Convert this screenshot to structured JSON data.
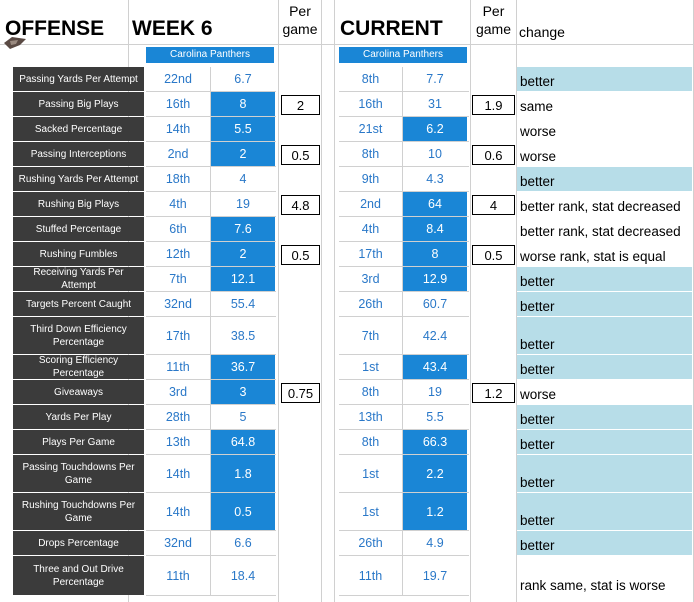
{
  "headers": {
    "offense": "OFFENSE",
    "week": "WEEK 6",
    "per_game_left": [
      "Per",
      "game"
    ],
    "current": "CURRENT",
    "per_game_right": [
      "Per",
      "game"
    ],
    "change": "change"
  },
  "team_left": "Carolina Panthers",
  "team_right": "Carolina Panthers",
  "colors": {
    "highlight": "#1a86d6",
    "label_bg": "#3b3b3b",
    "change_bg": "#b7dde8",
    "value_text": "#2a78c8"
  },
  "rows": [
    {
      "label": "Passing Yards Per Attempt",
      "w_rank": "22nd",
      "w_val": "6.7",
      "w_hi": false,
      "pg_left": "",
      "c_rank": "8th",
      "c_val": "7.7",
      "c_hi": false,
      "pg_right": "",
      "change": "better",
      "change_blue": true
    },
    {
      "label": "Passing Big Plays",
      "w_rank": "16th",
      "w_val": "8",
      "w_hi": true,
      "pg_left": "2",
      "c_rank": "16th",
      "c_val": "31",
      "c_hi": false,
      "pg_right": "1.9",
      "change": "same",
      "change_blue": false
    },
    {
      "label": "Sacked Percentage",
      "w_rank": "14th",
      "w_val": "5.5",
      "w_hi": true,
      "pg_left": "",
      "c_rank": "21st",
      "c_val": "6.2",
      "c_hi": true,
      "pg_right": "",
      "change": "worse",
      "change_blue": false
    },
    {
      "label": "Passing Interceptions",
      "w_rank": "2nd",
      "w_val": "2",
      "w_hi": true,
      "pg_left": "0.5",
      "c_rank": "8th",
      "c_val": "10",
      "c_hi": false,
      "pg_right": "0.6",
      "change": "worse",
      "change_blue": false
    },
    {
      "label": "Rushing Yards Per Attempt",
      "w_rank": "18th",
      "w_val": "4",
      "w_hi": false,
      "pg_left": "",
      "c_rank": "9th",
      "c_val": "4.3",
      "c_hi": false,
      "pg_right": "",
      "change": "better",
      "change_blue": true
    },
    {
      "label": "Rushing Big Plays",
      "w_rank": "4th",
      "w_val": "19",
      "w_hi": false,
      "pg_left": "4.8",
      "c_rank": "2nd",
      "c_val": "64",
      "c_hi": true,
      "pg_right": "4",
      "change": "better rank, stat decreased",
      "change_blue": false
    },
    {
      "label": "Stuffed Percentage",
      "w_rank": "6th",
      "w_val": "7.6",
      "w_hi": true,
      "pg_left": "",
      "c_rank": "4th",
      "c_val": "8.4",
      "c_hi": true,
      "pg_right": "",
      "change": "better rank, stat decreased",
      "change_blue": false
    },
    {
      "label": "Rushing Fumbles",
      "w_rank": "12th",
      "w_val": "2",
      "w_hi": true,
      "pg_left": "0.5",
      "c_rank": "17th",
      "c_val": "8",
      "c_hi": true,
      "pg_right": "0.5",
      "change": "worse rank, stat is equal",
      "change_blue": false
    },
    {
      "label": "Receiving Yards Per Attempt",
      "w_rank": "7th",
      "w_val": "12.1",
      "w_hi": true,
      "pg_left": "",
      "c_rank": "3rd",
      "c_val": "12.9",
      "c_hi": true,
      "pg_right": "",
      "change": "better",
      "change_blue": true
    },
    {
      "label": "Targets Percent Caught",
      "w_rank": "32nd",
      "w_val": "55.4",
      "w_hi": false,
      "pg_left": "",
      "c_rank": "26th",
      "c_val": "60.7",
      "c_hi": false,
      "pg_right": "",
      "change": "better",
      "change_blue": true
    },
    {
      "label": "Third Down Efficiency Percentage",
      "w_rank": "17th",
      "w_val": "38.5",
      "w_hi": false,
      "pg_left": "",
      "c_rank": "7th",
      "c_val": "42.4",
      "c_hi": false,
      "pg_right": "",
      "change": "better",
      "change_blue": true
    },
    {
      "label": "Scoring Efficiency Percentage",
      "w_rank": "11th",
      "w_val": "36.7",
      "w_hi": true,
      "pg_left": "",
      "c_rank": "1st",
      "c_val": "43.4",
      "c_hi": true,
      "pg_right": "",
      "change": "better",
      "change_blue": true
    },
    {
      "label": "Giveaways",
      "w_rank": "3rd",
      "w_val": "3",
      "w_hi": true,
      "pg_left": "0.75",
      "c_rank": "8th",
      "c_val": "19",
      "c_hi": false,
      "pg_right": "1.2",
      "change": "worse",
      "change_blue": false
    },
    {
      "label": "Yards Per Play",
      "w_rank": "28th",
      "w_val": "5",
      "w_hi": false,
      "pg_left": "",
      "c_rank": "13th",
      "c_val": "5.5",
      "c_hi": false,
      "pg_right": "",
      "change": "better",
      "change_blue": true
    },
    {
      "label": "Plays Per Game",
      "w_rank": "13th",
      "w_val": "64.8",
      "w_hi": true,
      "pg_left": "",
      "c_rank": "8th",
      "c_val": "66.3",
      "c_hi": true,
      "pg_right": "",
      "change": "better",
      "change_blue": true
    },
    {
      "label": "Passing Touchdowns Per Game",
      "w_rank": "14th",
      "w_val": "1.8",
      "w_hi": true,
      "pg_left": "",
      "c_rank": "1st",
      "c_val": "2.2",
      "c_hi": true,
      "pg_right": "",
      "change": "better",
      "change_blue": true
    },
    {
      "label": "Rushing Touchdowns Per Game",
      "w_rank": "14th",
      "w_val": "0.5",
      "w_hi": true,
      "pg_left": "",
      "c_rank": "1st",
      "c_val": "1.2",
      "c_hi": true,
      "pg_right": "",
      "change": "better",
      "change_blue": true
    },
    {
      "label": "Drops Percentage",
      "w_rank": "32nd",
      "w_val": "6.6",
      "w_hi": false,
      "pg_left": "",
      "c_rank": "26th",
      "c_val": "4.9",
      "c_hi": false,
      "pg_right": "",
      "change": "better",
      "change_blue": true
    },
    {
      "label": "Three and Out Drive Percentage",
      "w_rank": "11th",
      "w_val": "18.4",
      "w_hi": false,
      "pg_left": "",
      "c_rank": "11th",
      "c_val": "19.7",
      "c_hi": false,
      "pg_right": "",
      "change": "rank same, stat is worse",
      "change_blue": false
    }
  ]
}
